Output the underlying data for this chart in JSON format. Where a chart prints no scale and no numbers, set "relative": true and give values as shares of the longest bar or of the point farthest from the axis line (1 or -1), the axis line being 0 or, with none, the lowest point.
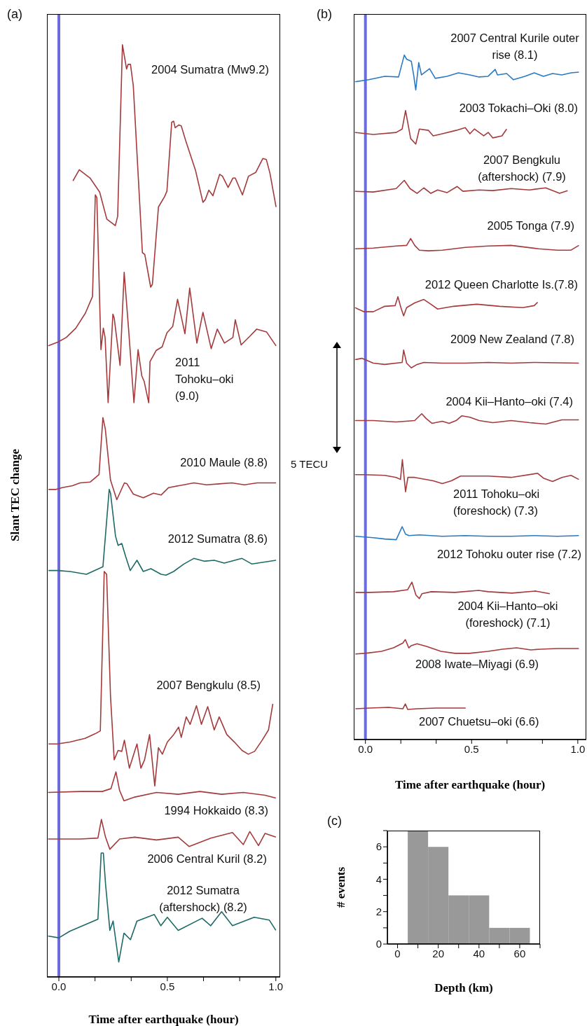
{
  "chart_data": [
    {
      "type": "line",
      "title": "(a)",
      "xlabel": "Time after earthquake (hour)",
      "ylabel": "Slant TEC change",
      "relative": true,
      "xlim": [
        -0.055,
        1.02
      ],
      "xticks": [
        {
          "value": 0,
          "label": "0.0"
        },
        {
          "value": 0.1667,
          "label": null
        },
        {
          "value": 0.3333,
          "label": null
        },
        {
          "value": 0.5,
          "label": "0.5"
        },
        {
          "value": 0.6667,
          "label": null
        },
        {
          "value": 0.8333,
          "label": null
        },
        {
          "value": 1,
          "label": "1.0"
        }
      ],
      "ref_lines": [
        {
          "axis": "x",
          "value": 0,
          "color": "#6b6bdc"
        }
      ],
      "series": [
        {
          "name": "2004 Sumatra (Mw9.2)",
          "color": "#a33a3c",
          "x": [
            0.065,
            0.094,
            0.144,
            0.188,
            0.221,
            0.26,
            0.271,
            0.293,
            0.312,
            0.319,
            0.33,
            0.343,
            0.385,
            0.396,
            0.423,
            0.431,
            0.459,
            0.487,
            0.498,
            0.52,
            0.529,
            0.536,
            0.553,
            0.564,
            0.586,
            0.63,
            0.664,
            0.675,
            0.691,
            0.71,
            0.741,
            0.754,
            0.78,
            0.802,
            0.813,
            0.846,
            0.874,
            0.907,
            0.94,
            0.956,
            0.973,
            1.001
          ],
          "values": [
            0.854,
            0.866,
            0.857,
            0.842,
            0.813,
            0.806,
            0.816,
            1.0,
            0.974,
            0.979,
            0.979,
            0.956,
            0.777,
            0.775,
            0.74,
            0.743,
            0.826,
            0.837,
            0.843,
            0.917,
            0.918,
            0.911,
            0.914,
            0.913,
            0.896,
            0.865,
            0.831,
            0.834,
            0.844,
            0.838,
            0.861,
            0.859,
            0.847,
            0.857,
            0.857,
            0.839,
            0.859,
            0.863,
            0.878,
            0.877,
            0.862,
            0.826
          ]
        },
        {
          "name": "2011 Tohoku–oki (9.0)",
          "color": "#a33a3c",
          "x": [
            -0.049,
            -0.005,
            0.034,
            0.078,
            0.122,
            0.155,
            0.168,
            0.175,
            0.194,
            0.205,
            0.213,
            0.227,
            0.249,
            0.255,
            0.282,
            0.301,
            0.321,
            0.346,
            0.365,
            0.382,
            0.393,
            0.414,
            0.42,
            0.448,
            0.476,
            0.498,
            0.525,
            0.547,
            0.581,
            0.603,
            0.636,
            0.664,
            0.702,
            0.73,
            0.763,
            0.802,
            0.813,
            0.84,
            0.879,
            0.912,
            0.957,
            1.001
          ],
          "values": [
            0.677,
            0.681,
            0.686,
            0.696,
            0.712,
            0.73,
            0.839,
            0.836,
            0.673,
            0.696,
            0.686,
            0.616,
            0.711,
            0.707,
            0.656,
            0.756,
            0.696,
            0.616,
            0.673,
            0.645,
            0.639,
            0.616,
            0.66,
            0.672,
            0.676,
            0.691,
            0.698,
            0.727,
            0.69,
            0.739,
            0.68,
            0.713,
            0.674,
            0.695,
            0.68,
            0.686,
            0.705,
            0.678,
            0.687,
            0.695,
            0.692,
            0.677
          ]
        },
        {
          "name": "2010 Maule (8.8)",
          "color": "#a33a3c",
          "x": [
            -0.048,
            -0.013,
            0.016,
            0.063,
            0.098,
            0.145,
            0.185,
            0.203,
            0.214,
            0.238,
            0.267,
            0.302,
            0.314,
            0.343,
            0.389,
            0.436,
            0.471,
            0.506,
            0.576,
            0.622,
            0.681,
            0.739,
            0.797,
            0.855,
            0.914,
            1.001
          ],
          "values": [
            0.523,
            0.523,
            0.525,
            0.527,
            0.53,
            0.531,
            0.539,
            0.6,
            0.588,
            0.533,
            0.512,
            0.53,
            0.529,
            0.518,
            0.514,
            0.519,
            0.517,
            0.525,
            0.528,
            0.53,
            0.528,
            0.529,
            0.53,
            0.528,
            0.53,
            0.53
          ]
        },
        {
          "name": "2012 Sumatra (8.6)",
          "color": "#1d6a67",
          "x": [
            -0.048,
            -0.007,
            0.051,
            0.127,
            0.203,
            0.232,
            0.238,
            0.261,
            0.273,
            0.29,
            0.308,
            0.329,
            0.36,
            0.389,
            0.424,
            0.471,
            0.494,
            0.529,
            0.576,
            0.622,
            0.669,
            0.716,
            0.762,
            0.844,
            0.89,
            1.001
          ],
          "values": [
            0.436,
            0.436,
            0.435,
            0.432,
            0.44,
            0.523,
            0.519,
            0.473,
            0.463,
            0.465,
            0.451,
            0.436,
            0.447,
            0.435,
            0.438,
            0.432,
            0.431,
            0.435,
            0.443,
            0.449,
            0.446,
            0.447,
            0.444,
            0.449,
            0.443,
            0.447
          ]
        },
        {
          "name": "2007 Bengkulu (8.5)",
          "color": "#a33a3c",
          "x": [
            -0.048,
            -0.007,
            0.051,
            0.121,
            0.168,
            0.191,
            0.209,
            0.22,
            0.238,
            0.255,
            0.273,
            0.29,
            0.302,
            0.325,
            0.36,
            0.378,
            0.395,
            0.418,
            0.442,
            0.459,
            0.477,
            0.5,
            0.529,
            0.552,
            0.564,
            0.587,
            0.605,
            0.634,
            0.657,
            0.686,
            0.716,
            0.739,
            0.774,
            0.809,
            0.844,
            0.873,
            0.902,
            0.937,
            0.966,
            0.986
          ],
          "values": [
            0.25,
            0.25,
            0.252,
            0.256,
            0.261,
            0.264,
            0.435,
            0.432,
            0.301,
            0.233,
            0.243,
            0.242,
            0.254,
            0.224,
            0.25,
            0.224,
            0.233,
            0.26,
            0.205,
            0.246,
            0.239,
            0.252,
            0.26,
            0.268,
            0.257,
            0.279,
            0.271,
            0.291,
            0.271,
            0.29,
            0.265,
            0.279,
            0.26,
            0.252,
            0.243,
            0.239,
            0.242,
            0.254,
            0.265,
            0.293
          ]
        },
        {
          "name": "1994 Hokkaido (8.3)",
          "color": "#a33a3c",
          "x": [
            -0.05,
            0.1,
            0.2,
            0.24,
            0.263,
            0.28,
            0.3,
            0.35,
            0.45,
            0.55,
            0.65,
            0.75,
            0.85,
            0.95,
            1.0
          ],
          "values": [
            0.198,
            0.199,
            0.199,
            0.202,
            0.22,
            0.2,
            0.189,
            0.193,
            0.198,
            0.196,
            0.199,
            0.196,
            0.198,
            0.195,
            0.192
          ]
        },
        {
          "name": "2006 Central Kuril (8.2)",
          "color": "#a33a3c",
          "x": [
            -0.05,
            0.1,
            0.18,
            0.196,
            0.215,
            0.235,
            0.28,
            0.35,
            0.45,
            0.55,
            0.6,
            0.7,
            0.8,
            0.85,
            0.88,
            0.92,
            0.95,
            1.0
          ],
          "values": [
            0.148,
            0.148,
            0.149,
            0.169,
            0.15,
            0.137,
            0.148,
            0.15,
            0.147,
            0.15,
            0.14,
            0.149,
            0.155,
            0.142,
            0.156,
            0.141,
            0.154,
            0.15
          ]
        },
        {
          "name": "2012 Sumatra (aftershock) (8.2)",
          "color": "#1d6a67",
          "x": [
            -0.05,
            0.0,
            0.05,
            0.18,
            0.195,
            0.205,
            0.215,
            0.235,
            0.25,
            0.276,
            0.3,
            0.33,
            0.36,
            0.44,
            0.47,
            0.5,
            0.55,
            0.66,
            0.7,
            0.75,
            0.8,
            0.9,
            0.97,
            1.0
          ],
          "values": [
            0.044,
            0.042,
            0.049,
            0.062,
            0.133,
            0.133,
            0.1,
            0.05,
            0.06,
            0.016,
            0.047,
            0.04,
            0.06,
            0.067,
            0.055,
            0.064,
            0.05,
            0.063,
            0.055,
            0.07,
            0.055,
            0.064,
            0.061,
            0.05
          ]
        }
      ]
    },
    {
      "type": "line",
      "title": "(b)",
      "xlabel": "Time after earthquake (hour)",
      "relative": true,
      "xlim": [
        -0.055,
        1.04
      ],
      "xticks": [
        {
          "value": 0,
          "label": "0.0"
        },
        {
          "value": 0.1667,
          "label": null
        },
        {
          "value": 0.3333,
          "label": null
        },
        {
          "value": 0.5,
          "label": "0.5"
        },
        {
          "value": 0.6667,
          "label": null
        },
        {
          "value": 0.8333,
          "label": null
        },
        {
          "value": 1,
          "label": "1.0"
        }
      ],
      "ref_lines": [
        {
          "axis": "x",
          "value": 0,
          "color": "#6b6bdc"
        }
      ],
      "annotations": [
        "5 TECU"
      ],
      "series": [
        {
          "name": "2007 Central Kurile outer rise (8.1)",
          "color": "#2b79c2",
          "x": [
            -0.049,
            0.016,
            0.091,
            0.156,
            0.183,
            0.194,
            0.216,
            0.227,
            0.237,
            0.251,
            0.264,
            0.302,
            0.329,
            0.384,
            0.438,
            0.492,
            0.535,
            0.578,
            0.611,
            0.622,
            0.665,
            0.697,
            0.751,
            0.795,
            0.838,
            0.881,
            0.925,
            0.968,
            1.005
          ],
          "values": [
            0.961,
            0.964,
            0.969,
            0.968,
            1.0,
            0.994,
            0.991,
            0.971,
            0.949,
            0.989,
            0.971,
            0.98,
            0.966,
            0.969,
            0.974,
            0.971,
            0.968,
            0.969,
            0.979,
            0.971,
            0.973,
            0.964,
            0.969,
            0.974,
            0.969,
            0.973,
            0.971,
            0.974,
            0.975
          ]
        },
        {
          "name": "2003 Tokachi–Oki (8.0)",
          "color": "#a33a3c",
          "x": [
            -0.049,
            0.037,
            0.145,
            0.173,
            0.189,
            0.213,
            0.237,
            0.254,
            0.297,
            0.319,
            0.362,
            0.427,
            0.47,
            0.492,
            0.513,
            0.557,
            0.578,
            0.6,
            0.643,
            0.665
          ],
          "values": [
            0.887,
            0.884,
            0.887,
            0.892,
            0.919,
            0.878,
            0.87,
            0.892,
            0.89,
            0.882,
            0.885,
            0.89,
            0.894,
            0.885,
            0.892,
            0.882,
            0.887,
            0.879,
            0.882,
            0.892
          ]
        },
        {
          "name": "2007 Bengkulu (aftershock) (7.9)",
          "color": "#a33a3c",
          "x": [
            -0.049,
            0.037,
            0.145,
            0.183,
            0.21,
            0.243,
            0.275,
            0.308,
            0.34,
            0.384,
            0.432,
            0.459,
            0.535,
            0.6,
            0.686,
            0.773,
            0.849,
            0.914,
            0.952
          ],
          "values": [
            0.801,
            0.8,
            0.805,
            0.817,
            0.805,
            0.798,
            0.806,
            0.798,
            0.803,
            0.799,
            0.808,
            0.801,
            0.803,
            0.802,
            0.805,
            0.803,
            0.806,
            0.798,
            0.802
          ]
        },
        {
          "name": "2005 Tonga (7.9)",
          "color": "#a33a3c",
          "x": [
            -0.049,
            0.037,
            0.145,
            0.194,
            0.213,
            0.232,
            0.254,
            0.297,
            0.362,
            0.47,
            0.578,
            0.686,
            0.816,
            0.903,
            0.968,
            1.005
          ],
          "values": [
            0.717,
            0.718,
            0.721,
            0.722,
            0.732,
            0.722,
            0.715,
            0.714,
            0.715,
            0.719,
            0.721,
            0.722,
            0.717,
            0.715,
            0.715,
            0.722
          ]
        },
        {
          "name": "2012 Queen Charlotte Is.(7.8)",
          "color": "#a33a3c",
          "x": [
            -0.049,
            -0.006,
            0.037,
            0.091,
            0.14,
            0.153,
            0.167,
            0.18,
            0.194,
            0.232,
            0.275,
            0.308,
            0.34,
            0.416,
            0.524,
            0.632,
            0.741,
            0.795,
            0.811
          ],
          "values": [
            0.631,
            0.625,
            0.625,
            0.633,
            0.634,
            0.647,
            0.631,
            0.619,
            0.631,
            0.638,
            0.643,
            0.636,
            0.629,
            0.633,
            0.636,
            0.633,
            0.631,
            0.634,
            0.639
          ]
        },
        {
          "name": "2009 New Zealand (7.8)",
          "color": "#a33a3c",
          "x": [
            -0.049,
            -0.017,
            0.037,
            0.091,
            0.173,
            0.18,
            0.194,
            0.216,
            0.243,
            0.275,
            0.362,
            0.47,
            0.578,
            0.686,
            0.795,
            1.005
          ],
          "values": [
            0.555,
            0.557,
            0.55,
            0.548,
            0.551,
            0.569,
            0.55,
            0.543,
            0.548,
            0.551,
            0.55,
            0.55,
            0.551,
            0.55,
            0.551,
            0.55
          ]
        },
        {
          "name": "2004 Kii–Hanto–oki (7.4)",
          "color": "#a33a3c",
          "x": [
            -0.049,
            0.037,
            0.145,
            0.232,
            0.265,
            0.286,
            0.313,
            0.362,
            0.394,
            0.427,
            0.454,
            0.492,
            0.535,
            0.6,
            0.686,
            0.773,
            0.849,
            0.925,
            1.005
          ],
          "values": [
            0.466,
            0.466,
            0.464,
            0.466,
            0.476,
            0.469,
            0.462,
            0.465,
            0.462,
            0.466,
            0.473,
            0.471,
            0.466,
            0.463,
            0.466,
            0.463,
            0.461,
            0.467,
            0.467
          ]
        },
        {
          "name": "2011 Tohoku–oki (foreshock) (7.3)",
          "color": "#a33a3c",
          "x": [
            -0.049,
            -0.006,
            0.091,
            0.145,
            0.165,
            0.174,
            0.182,
            0.189,
            0.2,
            0.232,
            0.319,
            0.362,
            0.405,
            0.448,
            0.578,
            0.686,
            0.811,
            0.838,
            0.881,
            0.925,
            0.968,
            1.005
          ],
          "values": [
            0.387,
            0.387,
            0.386,
            0.383,
            0.38,
            0.409,
            0.383,
            0.362,
            0.383,
            0.383,
            0.378,
            0.374,
            0.378,
            0.385,
            0.385,
            0.383,
            0.389,
            0.382,
            0.377,
            0.383,
            0.386,
            0.38
          ]
        },
        {
          "name": "2012 Tohoku outer rise (7.2)",
          "color": "#2b79c2",
          "x": [
            -0.049,
            0.037,
            0.091,
            0.145,
            0.173,
            0.189,
            0.205,
            0.254,
            0.362,
            0.47,
            0.578,
            0.686,
            0.795,
            0.903,
            1.005
          ],
          "values": [
            0.297,
            0.295,
            0.293,
            0.292,
            0.311,
            0.3,
            0.298,
            0.299,
            0.297,
            0.298,
            0.297,
            0.297,
            0.298,
            0.297,
            0.298
          ]
        },
        {
          "name": "2004 Kii–Hanto–oki (foreshock) (7.1)",
          "color": "#a33a3c",
          "x": [
            -0.047,
            0.02,
            0.132,
            0.199,
            0.219,
            0.238,
            0.254,
            0.266,
            0.31,
            0.422,
            0.533,
            0.578,
            0.69,
            0.801,
            0.868
          ],
          "values": [
            0.215,
            0.215,
            0.216,
            0.219,
            0.23,
            0.211,
            0.206,
            0.213,
            0.216,
            0.215,
            0.218,
            0.216,
            0.214,
            0.217,
            0.213
          ]
        },
        {
          "name": "2008 Iwate–Miyagi (6.9)",
          "color": "#a33a3c",
          "x": [
            -0.047,
            -0.002,
            0.076,
            0.132,
            0.176,
            0.188,
            0.204,
            0.215,
            0.243,
            0.288,
            0.355,
            0.422,
            0.489,
            0.578,
            0.645,
            0.712,
            0.779,
            0.824,
            0.902,
            1.005
          ],
          "values": [
            0.125,
            0.126,
            0.129,
            0.134,
            0.141,
            0.146,
            0.134,
            0.137,
            0.14,
            0.136,
            0.129,
            0.126,
            0.126,
            0.129,
            0.132,
            0.134,
            0.131,
            0.132,
            0.133,
            0.133
          ]
        },
        {
          "name": "2007 Chuetsu–oki (6.6)",
          "color": "#a33a3c",
          "x": [
            -0.047,
            0.02,
            0.109,
            0.176,
            0.188,
            0.199,
            0.243,
            0.333,
            0.422,
            0.472
          ],
          "values": [
            0.045,
            0.046,
            0.047,
            0.045,
            0.052,
            0.044,
            0.045,
            0.046,
            0.046,
            0.046
          ]
        }
      ]
    },
    {
      "type": "histogram",
      "title": "(c)",
      "xlabel": "Depth (km)",
      "ylabel": "# events",
      "bins": [
        5,
        15,
        25,
        35,
        45,
        55,
        65
      ],
      "values": [
        7,
        6,
        3,
        3,
        1,
        1
      ],
      "color": "#999999",
      "xlim": [
        -5,
        70
      ],
      "xticks": [
        0,
        {
          "value": 10,
          "label": null
        },
        20,
        {
          "value": 30,
          "label": null
        },
        40,
        {
          "value": 50,
          "label": null
        },
        60,
        {
          "value": 70,
          "label": null
        }
      ],
      "ylim": [
        0,
        7
      ],
      "yticks": [
        0,
        {
          "value": 1,
          "label": null
        },
        2,
        {
          "value": 3,
          "label": null
        },
        4,
        {
          "value": 5,
          "label": null
        },
        6,
        {
          "value": 7,
          "label": null
        }
      ]
    }
  ]
}
